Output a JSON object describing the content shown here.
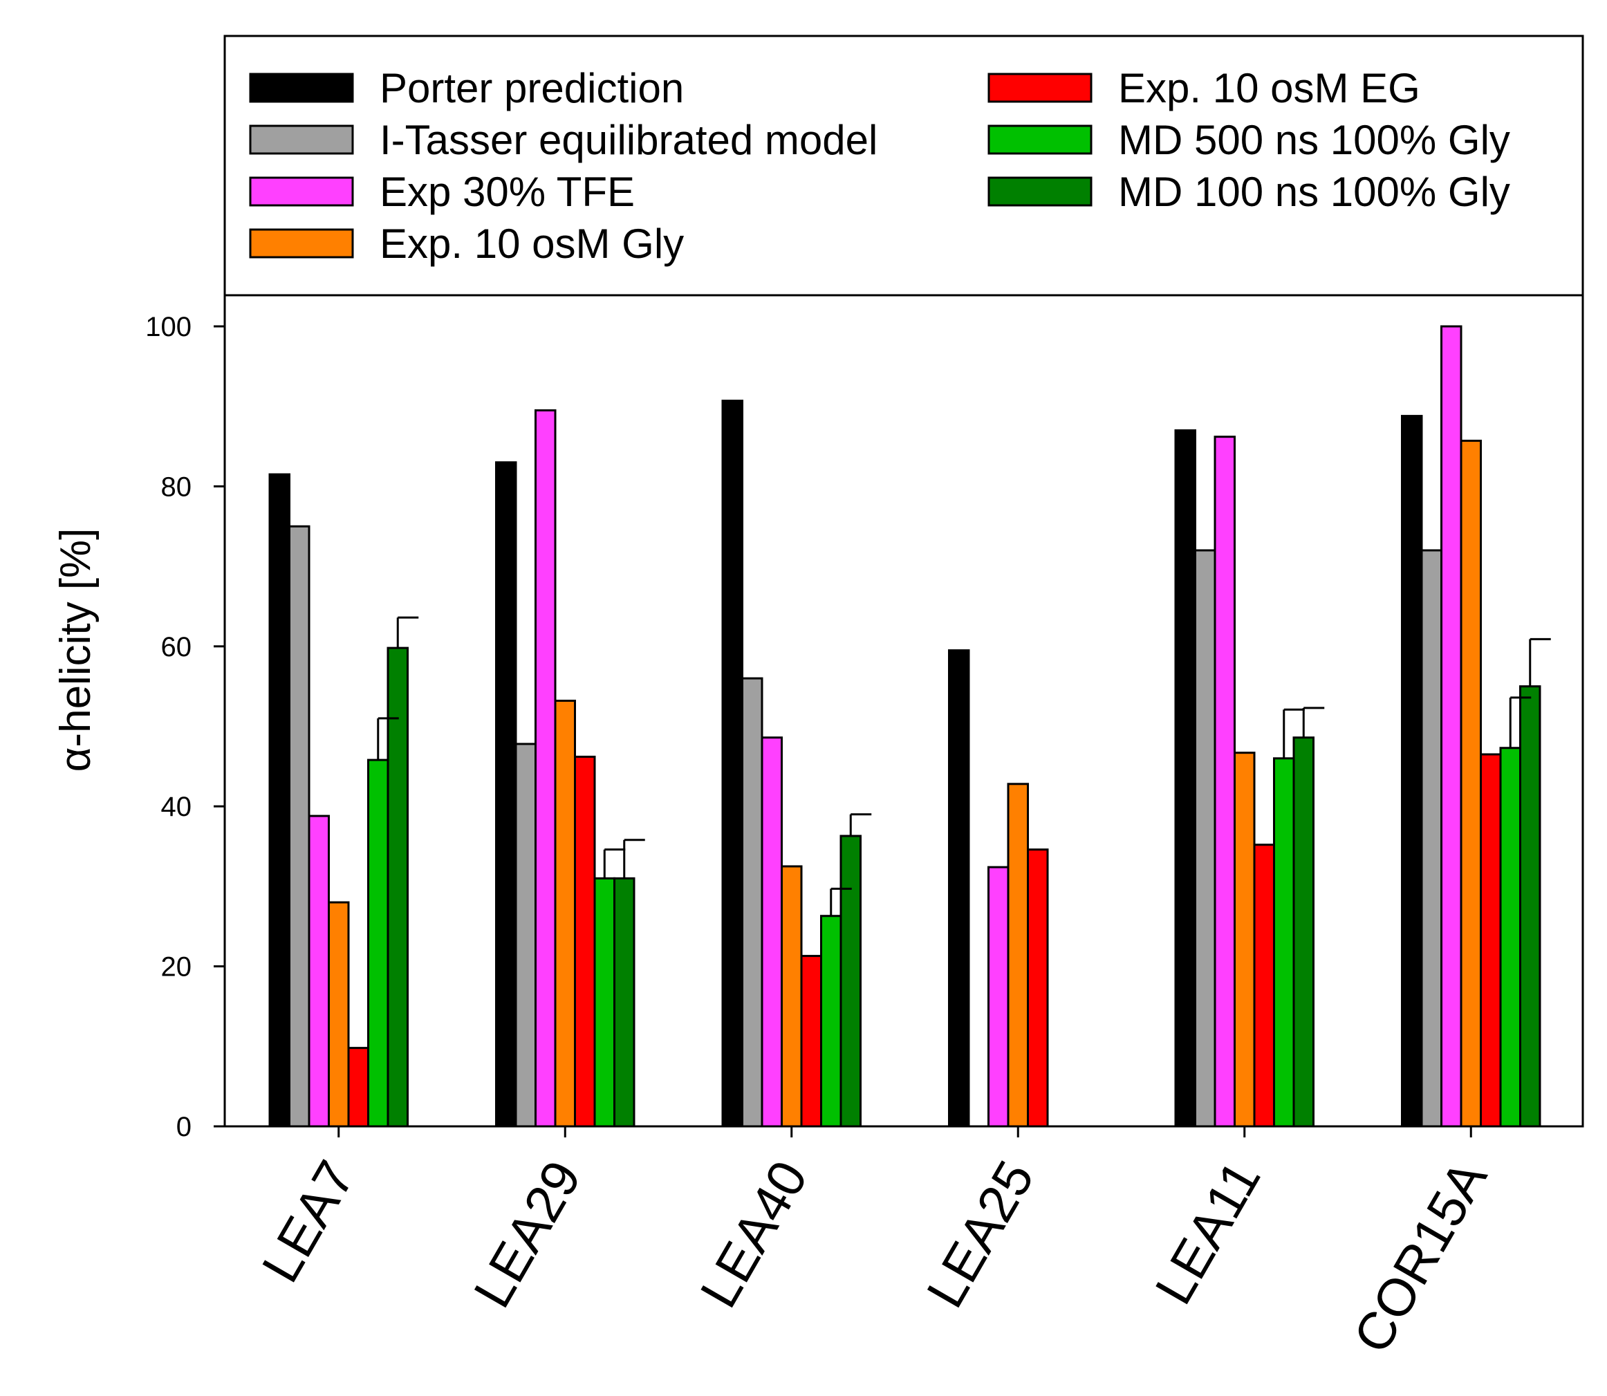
{
  "chart_data": {
    "type": "bar",
    "title": "",
    "xlabel": "",
    "ylabel": "α-helicity [%]",
    "ylim": [
      0,
      100
    ],
    "yticks": [
      0,
      20,
      40,
      60,
      80,
      100
    ],
    "grid": false,
    "legend_position": "top",
    "categories": [
      "LEA7",
      "LEA29",
      "LEA40",
      "LEA25",
      "LEA11",
      "COR15A"
    ],
    "series": [
      {
        "name": "Porter prediction",
        "color": "#000000",
        "values": [
          81.5,
          83,
          90.7,
          59.5,
          87,
          88.8
        ],
        "errors": [
          null,
          null,
          null,
          null,
          null,
          null
        ]
      },
      {
        "name": "I-Tasser equilibrated model",
        "color": "#a0a0a0",
        "values": [
          75,
          47.8,
          56,
          null,
          72,
          72
        ],
        "errors": [
          null,
          null,
          null,
          null,
          null,
          null
        ]
      },
      {
        "name": "Exp 30% TFE",
        "color": "#ff40ff",
        "values": [
          38.8,
          89.5,
          48.6,
          32.4,
          86.2,
          100
        ],
        "errors": [
          null,
          null,
          null,
          null,
          null,
          null
        ]
      },
      {
        "name": "Exp. 10 osM Gly",
        "color": "#ff8000",
        "values": [
          28,
          53.2,
          32.5,
          42.8,
          46.7,
          85.7
        ],
        "errors": [
          null,
          null,
          null,
          null,
          null,
          null
        ]
      },
      {
        "name": "Exp. 10 osM EG",
        "color": "#ff0000",
        "values": [
          9.8,
          46.2,
          21.3,
          34.6,
          35.2,
          46.5
        ],
        "errors": [
          null,
          null,
          null,
          null,
          null,
          null
        ]
      },
      {
        "name": "MD 500 ns 100% Gly",
        "color": "#00c000",
        "values": [
          45.8,
          31,
          26.3,
          null,
          46,
          47.3
        ],
        "errors": [
          5.2,
          3.6,
          3.4,
          null,
          6.1,
          6.3
        ]
      },
      {
        "name": "MD 100 ns 100% Gly",
        "color": "#008000",
        "values": [
          59.8,
          31,
          36.3,
          null,
          48.6,
          55
        ],
        "errors": [
          3.8,
          4.8,
          2.7,
          null,
          3.7,
          5.9
        ]
      }
    ]
  }
}
